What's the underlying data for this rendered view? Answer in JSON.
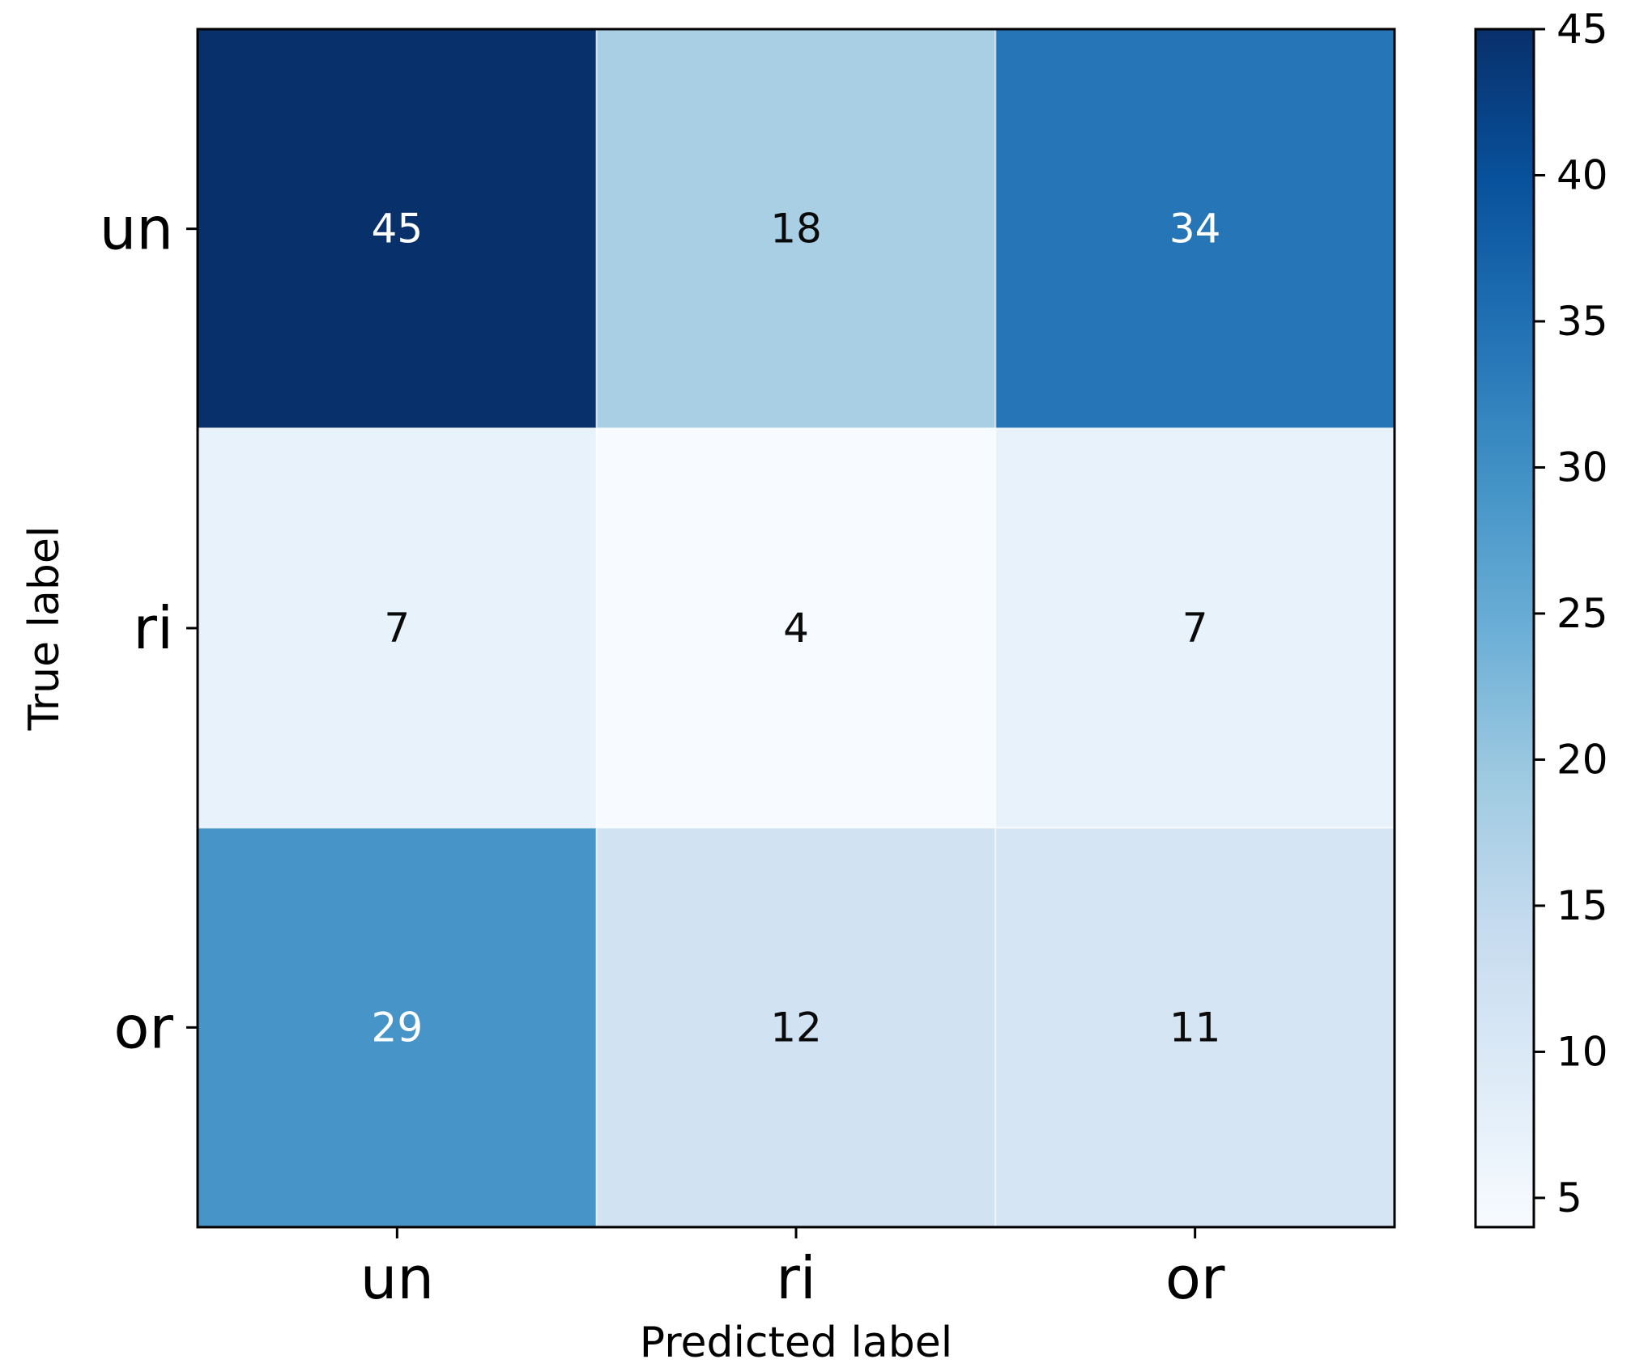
{
  "chart_data": {
    "type": "heatmap",
    "colormap": "Blues",
    "xlabel": "Predicted label",
    "ylabel": "True label",
    "x_categories": [
      "un",
      "ri",
      "or"
    ],
    "y_categories": [
      "un",
      "ri",
      "or"
    ],
    "values": [
      [
        45,
        18,
        34
      ],
      [
        7,
        4,
        7
      ],
      [
        29,
        12,
        11
      ]
    ],
    "colorbar": {
      "range": [
        4,
        45
      ],
      "ticks": [
        5,
        10,
        15,
        20,
        25,
        30,
        35,
        40,
        45
      ]
    },
    "text_colors": {
      "dark_cell_text": "#ffffff",
      "light_cell_text": "#0a0a0a"
    }
  }
}
